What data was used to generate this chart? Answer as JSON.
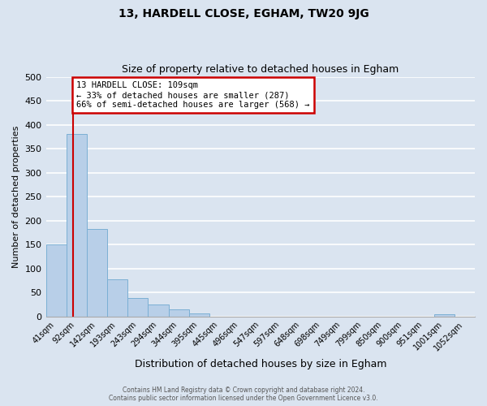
{
  "title": "13, HARDELL CLOSE, EGHAM, TW20 9JG",
  "subtitle": "Size of property relative to detached houses in Egham",
  "xlabel": "Distribution of detached houses by size in Egham",
  "ylabel": "Number of detached properties",
  "bar_labels": [
    "41sqm",
    "92sqm",
    "142sqm",
    "193sqm",
    "243sqm",
    "294sqm",
    "344sqm",
    "395sqm",
    "445sqm",
    "496sqm",
    "547sqm",
    "597sqm",
    "648sqm",
    "698sqm",
    "749sqm",
    "799sqm",
    "850sqm",
    "900sqm",
    "951sqm",
    "1001sqm",
    "1052sqm"
  ],
  "bar_values": [
    150,
    380,
    182,
    78,
    38,
    24,
    14,
    6,
    0,
    0,
    0,
    0,
    0,
    0,
    0,
    0,
    0,
    0,
    0,
    5,
    0
  ],
  "bar_color": "#b8cfe8",
  "bar_edge_color": "#7bafd4",
  "background_color": "#dae4f0",
  "grid_color": "#ffffff",
  "vline_color": "#cc0000",
  "annotation_text": "13 HARDELL CLOSE: 109sqm\n← 33% of detached houses are smaller (287)\n66% of semi-detached houses are larger (568) →",
  "annotation_box_color": "#ffffff",
  "annotation_box_edge": "#cc0000",
  "ylim": [
    0,
    500
  ],
  "yticks": [
    0,
    50,
    100,
    150,
    200,
    250,
    300,
    350,
    400,
    450,
    500
  ],
  "footer_line1": "Contains HM Land Registry data © Crown copyright and database right 2024.",
  "footer_line2": "Contains public sector information licensed under the Open Government Licence v3.0."
}
